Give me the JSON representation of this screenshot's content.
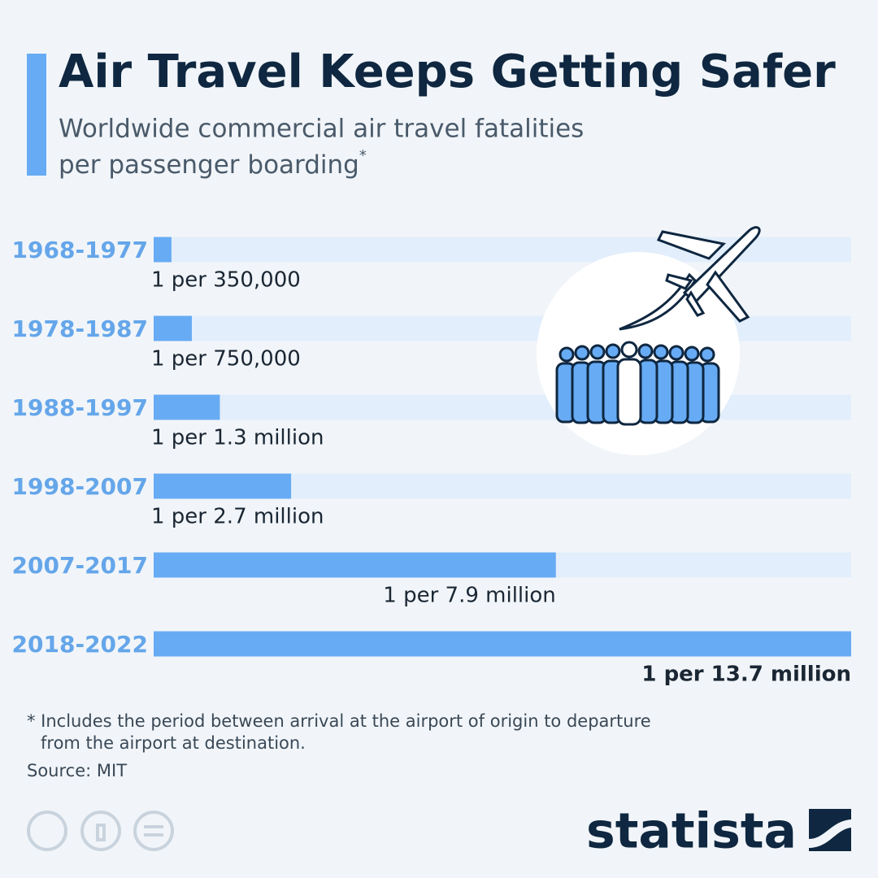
{
  "chart_data": {
    "type": "bar",
    "orientation": "horizontal",
    "title": "Air Travel Keeps Getting Safer",
    "subtitle": "Worldwide commercial air travel fatalities",
    "subtitle_line2": "per passenger boarding",
    "subtitle_mark": "*",
    "categories": [
      "1968-1977",
      "1978-1987",
      "1988-1997",
      "1998-2007",
      "2007-2017",
      "2018-2022"
    ],
    "values": [
      350000,
      750000,
      1300000,
      2700000,
      7900000,
      13700000
    ],
    "value_labels": [
      "1 per 350,000",
      "1 per 750,000",
      "1 per 1.3 million",
      "1 per 2.7 million",
      "1 per 7.9 million",
      "1 per 13.7 million"
    ],
    "color": "#67abf4",
    "track_color": "#e2eefb",
    "xlim": [
      0,
      13700000
    ],
    "footnote": [
      "* Includes the period between arrival at the airport of origin to departure",
      "from the airport at destination."
    ],
    "source": "Source: MIT",
    "brand": "statista"
  }
}
